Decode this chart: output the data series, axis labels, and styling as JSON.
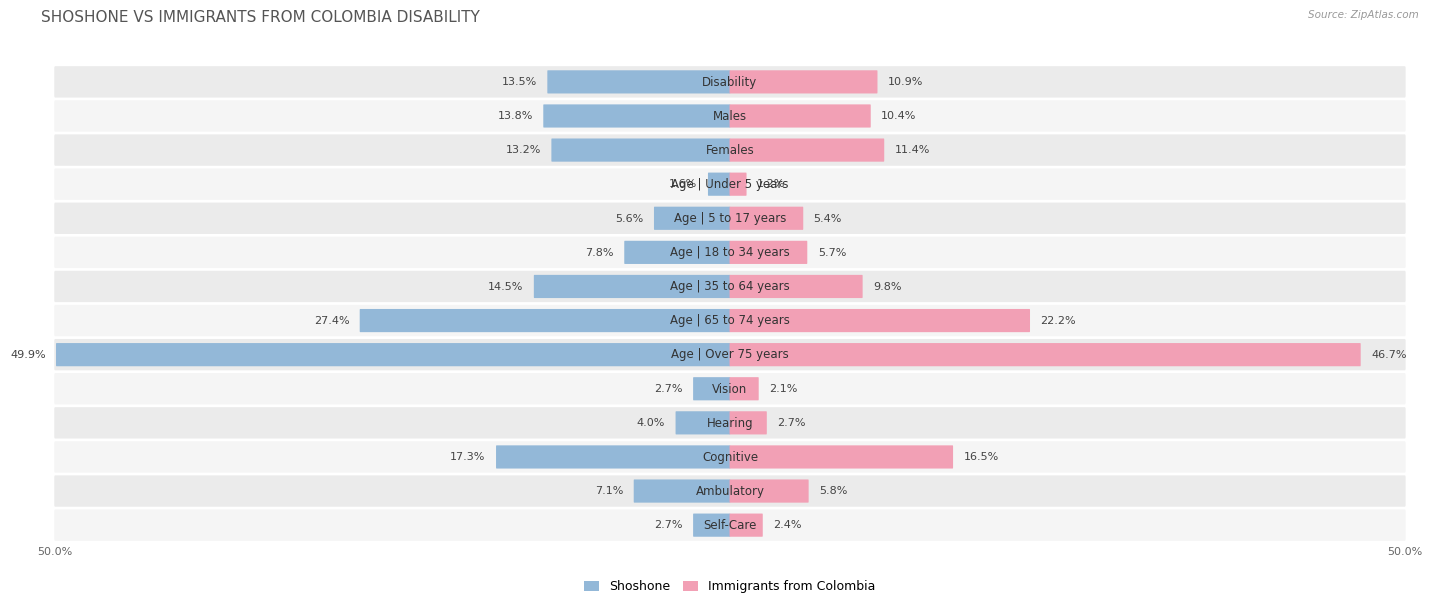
{
  "title": "SHOSHONE VS IMMIGRANTS FROM COLOMBIA DISABILITY",
  "source": "Source: ZipAtlas.com",
  "categories": [
    "Disability",
    "Males",
    "Females",
    "Age | Under 5 years",
    "Age | 5 to 17 years",
    "Age | 18 to 34 years",
    "Age | 35 to 64 years",
    "Age | 65 to 74 years",
    "Age | Over 75 years",
    "Vision",
    "Hearing",
    "Cognitive",
    "Ambulatory",
    "Self-Care"
  ],
  "shoshone": [
    13.5,
    13.8,
    13.2,
    1.6,
    5.6,
    7.8,
    14.5,
    27.4,
    49.9,
    2.7,
    4.0,
    17.3,
    7.1,
    2.7
  ],
  "colombia": [
    10.9,
    10.4,
    11.4,
    1.2,
    5.4,
    5.7,
    9.8,
    22.2,
    46.7,
    2.1,
    2.7,
    16.5,
    5.8,
    2.4
  ],
  "shoshone_color": "#93b8d8",
  "colombia_color": "#f2a0b5",
  "pill_bg_odd": "#ebebeb",
  "pill_bg_even": "#f5f5f5",
  "shoshone_label": "Shoshone",
  "colombia_label": "Immigrants from Colombia",
  "axis_max": 50.0,
  "page_bg": "#ffffff",
  "title_fontsize": 11,
  "label_fontsize": 8.5,
  "value_fontsize": 8.0,
  "legend_fontsize": 9
}
